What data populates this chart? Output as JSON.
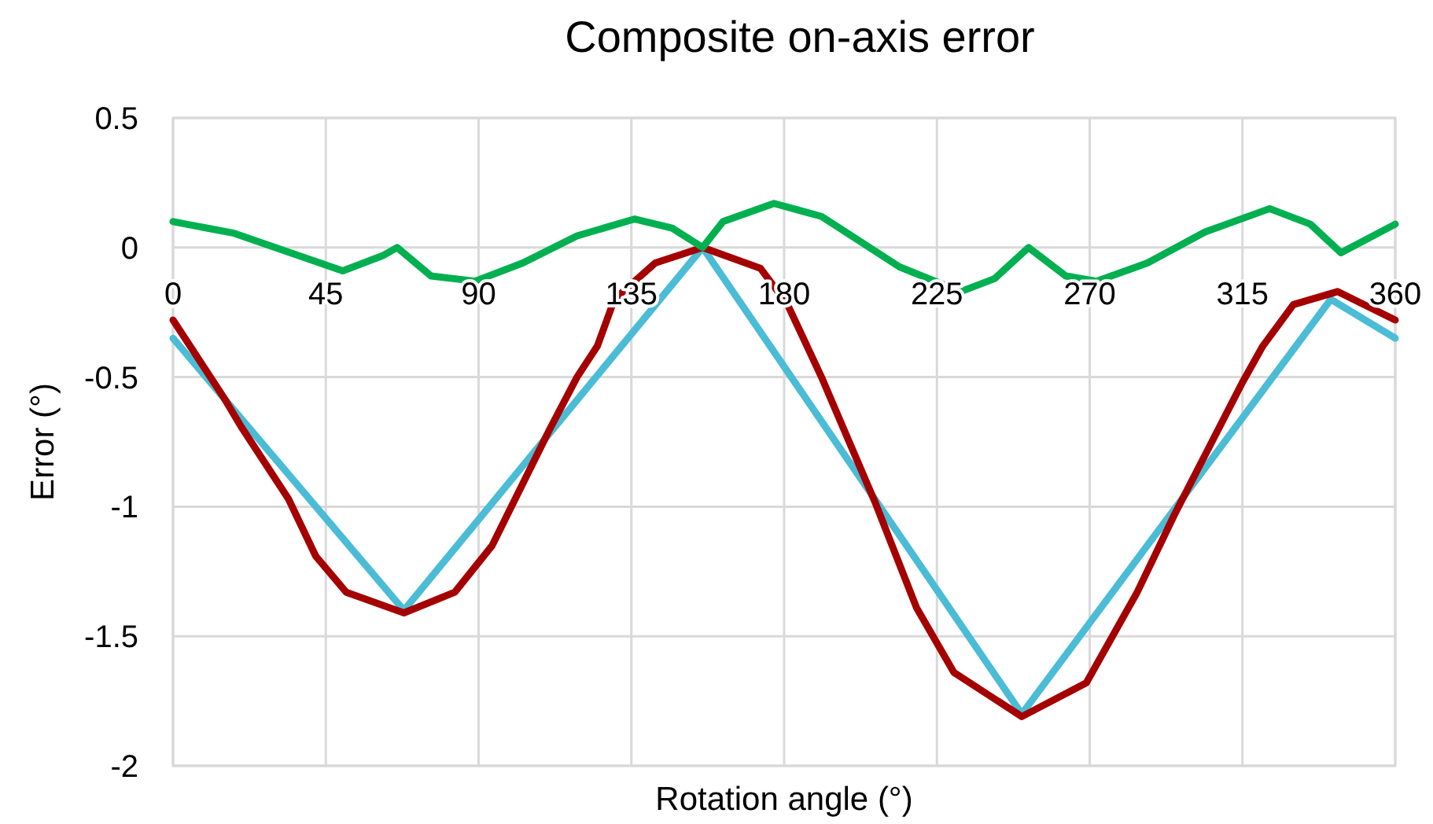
{
  "chart_data": {
    "type": "line",
    "title": "Composite on-axis error",
    "xlabel": "Rotation angle (°)",
    "ylabel": "Error (°)",
    "xlim": [
      0,
      360
    ],
    "xticks": [
      0,
      45,
      90,
      135,
      180,
      225,
      270,
      315,
      360
    ],
    "ylim": [
      -2,
      0.5
    ],
    "yticks": [
      -2,
      -1.5,
      -1,
      -0.5,
      0,
      0.5
    ],
    "grid": true,
    "marker": "none",
    "line_style": "solid",
    "series": [
      {
        "color": "#4bbcd6",
        "x": [
          0,
          68,
          156,
          250,
          341,
          360
        ],
        "values": [
          -0.35,
          -1.4,
          0,
          -1.8,
          -0.2,
          -0.35
        ]
      },
      {
        "color": "#a50000",
        "x": [
          0,
          15,
          20,
          34,
          42,
          51,
          68,
          83,
          94,
          111,
          119,
          125,
          130,
          142,
          156,
          173,
          181,
          191,
          207,
          219,
          230,
          250,
          269,
          284,
          295,
          315,
          321,
          330,
          343,
          360
        ],
        "values": [
          -0.28,
          -0.58,
          -0.69,
          -0.97,
          -1.19,
          -1.33,
          -1.41,
          -1.33,
          -1.15,
          -0.7,
          -0.5,
          -0.38,
          -0.2,
          -0.06,
          0,
          -0.08,
          -0.22,
          -0.5,
          -0.99,
          -1.39,
          -1.64,
          -1.81,
          -1.68,
          -1.33,
          -1.03,
          -0.52,
          -0.38,
          -0.22,
          -0.17,
          -0.28
        ]
      },
      {
        "color": "#00b050",
        "x": [
          0,
          18,
          50,
          62,
          66,
          76,
          89,
          103,
          119,
          136,
          147,
          156,
          162,
          177,
          191,
          214,
          232,
          242,
          252,
          263,
          272,
          287,
          304,
          323,
          335,
          344,
          360
        ],
        "values": [
          0.1,
          0.055,
          -0.09,
          -0.03,
          0,
          -0.11,
          -0.13,
          -0.06,
          0.045,
          0.11,
          0.075,
          0,
          0.1,
          0.17,
          0.12,
          -0.075,
          -0.17,
          -0.12,
          0,
          -0.11,
          -0.13,
          -0.06,
          0.06,
          0.15,
          0.09,
          -0.02,
          0.09
        ]
      }
    ]
  }
}
